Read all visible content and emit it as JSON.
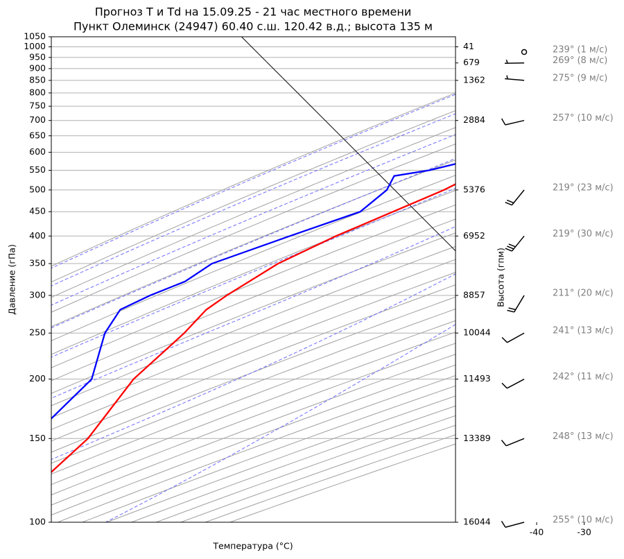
{
  "chart_data": {
    "type": "skewt",
    "title": "Прогноз T и Td на 15.09.25 - 21 час местного времени",
    "subtitle": "Пункт Олеминск (24947) 60.40 с.ш. 120.42 в.д.; высота 135 м",
    "xlabel": "Температура (°C)",
    "ylabel": "Давление (гПа)",
    "y2label": "Высота (гпм)",
    "xlim": [
      -40,
      45
    ],
    "ylim": [
      1050,
      100
    ],
    "log_y": true,
    "grid": true,
    "isotherm": 0,
    "xticks": [
      -40,
      -30,
      -20,
      -10,
      0,
      10,
      20,
      30,
      40
    ],
    "yticks": [
      100,
      150,
      200,
      250,
      300,
      350,
      400,
      450,
      500,
      550,
      600,
      650,
      700,
      750,
      800,
      850,
      900,
      950,
      1000,
      1050
    ],
    "height_ticks": [
      {
        "value": 100,
        "label": "16044"
      },
      {
        "value": 150,
        "label": "13389"
      },
      {
        "value": 200,
        "label": "11493"
      },
      {
        "value": 250,
        "label": "10044"
      },
      {
        "value": 300,
        "label": "8857"
      },
      {
        "value": 400,
        "label": "6952"
      },
      {
        "value": 500,
        "label": "5376"
      },
      {
        "value": 700,
        "label": "2884"
      },
      {
        "value": 850,
        "label": "1362"
      },
      {
        "value": 925,
        "label": "679"
      },
      {
        "value": 1000,
        "label": "41"
      }
    ],
    "series": [
      {
        "color": "#ff0000",
        "pressure": [
          1000,
          950,
          900,
          850,
          800,
          750,
          700,
          650,
          600,
          550,
          500,
          450,
          400,
          350,
          300,
          280,
          250,
          200,
          150,
          100
        ],
        "values": [
          7,
          6.1,
          2.8,
          -1.8,
          -4.7,
          -8,
          -11.4,
          -15,
          -20,
          -23.1,
          -27.3,
          -33.4,
          -40.3,
          -46.7,
          -50.8,
          -52.1,
          -51.8,
          -52.8,
          -49.9,
          -51.5
        ]
      },
      {
        "color": "#0000ff",
        "pressure": [
          1000,
          950,
          900,
          850,
          800,
          750,
          700,
          650,
          600,
          580,
          550,
          535,
          500,
          450,
          400,
          350,
          321,
          300,
          280,
          250,
          200,
          150,
          100
        ],
        "values": [
          3.5,
          0,
          -2.9,
          -5.4,
          -9.5,
          -13.9,
          -18.2,
          -23.9,
          -27,
          -27.3,
          -34.5,
          -40.7,
          -39.3,
          -40.3,
          -50,
          -60.6,
          -62.5,
          -66.9,
          -70.2,
          -68.5,
          -61.6,
          -61.9,
          -70
        ]
      }
    ],
    "winds": {
      "pressure": [
        100,
        150,
        200,
        250,
        300,
        400,
        500,
        700,
        850,
        925,
        1000
      ],
      "direction": [
        255,
        248,
        242,
        241,
        211,
        219,
        219,
        257,
        275,
        269,
        239
      ],
      "speed": [
        10,
        13,
        11,
        13,
        20,
        30,
        23,
        10,
        9,
        8,
        1
      ],
      "labels": [
        "255° (10 м/с)",
        "248° (13 м/с)",
        "242° (11 м/с)",
        "241° (13 м/с)",
        "211° (20 м/с)",
        "219° (30 м/с)",
        "219° (23 м/с)",
        "257° (10 м/с)",
        "275° (9 м/с)",
        "269° (8 м/с)",
        "239° (1 м/с)"
      ]
    }
  }
}
